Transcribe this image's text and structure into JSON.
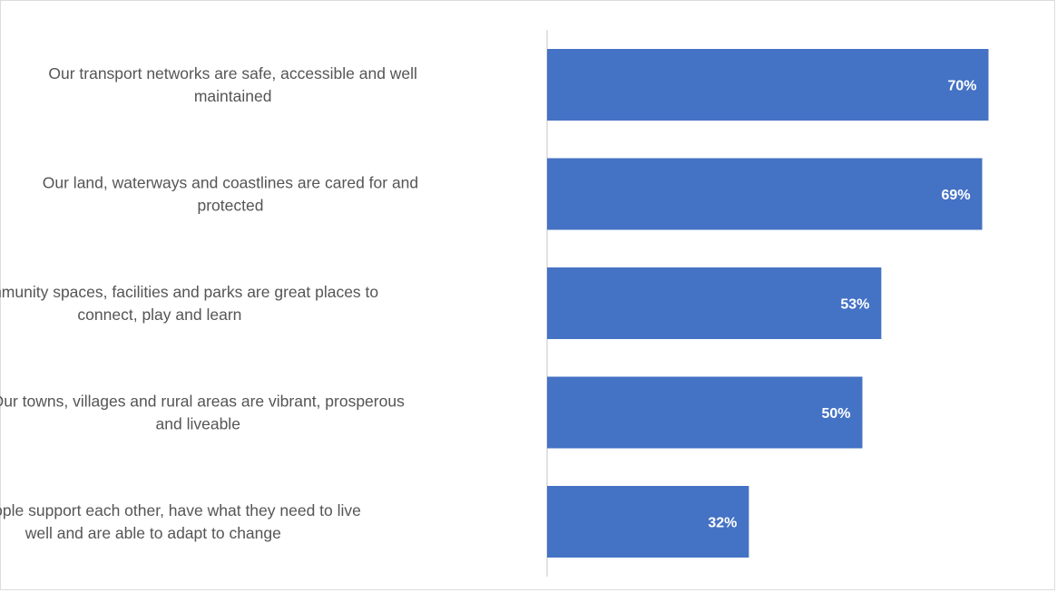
{
  "chart_data": {
    "type": "bar",
    "orientation": "horizontal",
    "categories": [
      [
        "Our transport networks are safe, accessible and well",
        "maintained"
      ],
      [
        "Our land, waterways and coastlines are cared for and",
        "protected"
      ],
      [
        "Our community spaces, facilities and parks are great places to",
        "connect, play and learn"
      ],
      [
        "Our towns, villages and rural areas are vibrant, prosperous",
        "and liveable"
      ],
      [
        "Our people support each other, have what they need to live",
        "well and are able to adapt to change"
      ]
    ],
    "values": [
      70,
      69,
      53,
      50,
      32
    ],
    "value_labels": [
      "70%",
      "69%",
      "53%",
      "50%",
      "32%"
    ],
    "xlim": [
      0,
      100
    ],
    "unit": "%",
    "title": "",
    "xlabel": "",
    "ylabel": "",
    "grid": false,
    "legend": "none",
    "colors": {
      "bar": "#4472C4",
      "axis": "#d9d9d9",
      "label_text": "#555555",
      "value_text": "#ffffff"
    }
  }
}
